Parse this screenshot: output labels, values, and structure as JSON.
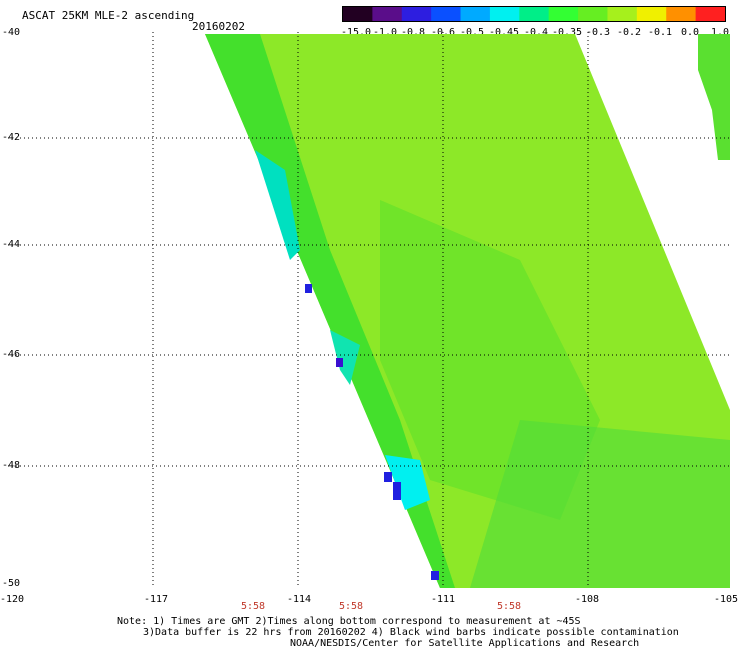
{
  "header": {
    "title": "ASCAT 25KM MLE-2 ascending",
    "date": "20160202"
  },
  "colorbar": {
    "labels": [
      "-15.0",
      "-1.0",
      "-0.8",
      "-0.6",
      "-0.5",
      "-0.45",
      "-0.4",
      "-0.35",
      "-0.3",
      "-0.2",
      "-0.1",
      "0.0",
      "1.0"
    ],
    "colors": [
      "#220022",
      "#5a0d8a",
      "#2d1ee0",
      "#0a50ff",
      "#00aaff",
      "#00f0f0",
      "#00ee88",
      "#33ff33",
      "#66ee22",
      "#a6f01c",
      "#f0f000",
      "#ff9000",
      "#ff2020"
    ]
  },
  "axes": {
    "lat_labels": [
      "-40",
      "-42",
      "-44",
      "-46",
      "-48",
      "-50"
    ],
    "lon_labels": [
      "-120",
      "-117",
      "-114",
      "-111",
      "-108",
      "-105"
    ]
  },
  "times": [
    "5:58",
    "5:58",
    "5:58"
  ],
  "notes": {
    "line1": "Note: 1) Times are GMT 2)Times along bottom correspond to measurement at ~45S",
    "line2": "3)Data buffer is 22 hrs from 20160202 4) Black wind barbs indicate possible contamination",
    "line3": "NOAA/NESDIS/Center for Satellite Applications and Research"
  }
}
